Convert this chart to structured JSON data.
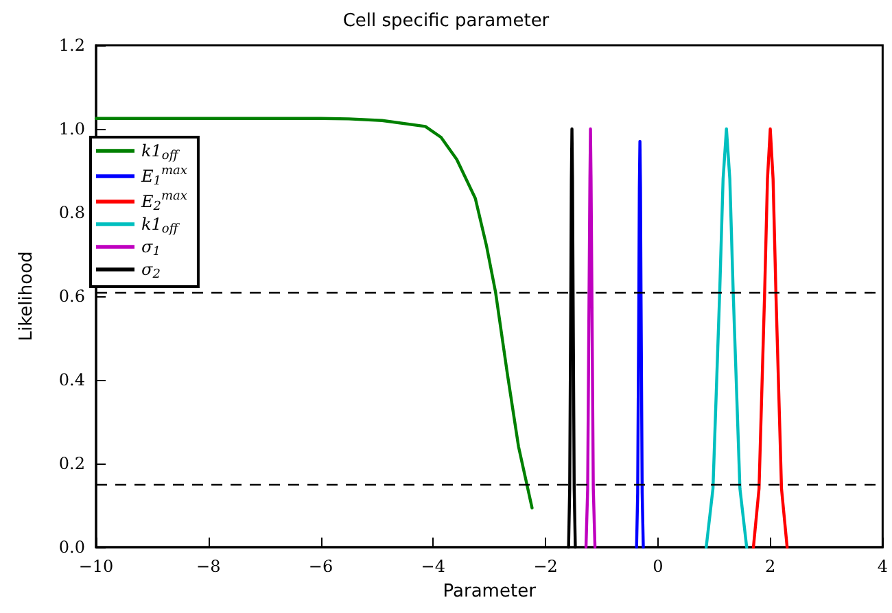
{
  "chart_data": {
    "type": "line",
    "title": "Cell specific parameter",
    "xlabel": "Parameter",
    "ylabel": "Likelihood",
    "xlim": [
      -10,
      4
    ],
    "xticks": [
      {
        "value": -10,
        "label": "−10"
      },
      {
        "value": -8,
        "label": "−8"
      },
      {
        "value": -6,
        "label": "−6"
      },
      {
        "value": -4,
        "label": "−4"
      },
      {
        "value": -2,
        "label": "−2"
      },
      0,
      2,
      4
    ],
    "ylim": [
      0,
      1.2
    ],
    "yticks": [
      {
        "value": 0,
        "label": "0.0"
      },
      {
        "value": 0.2,
        "label": "0.2"
      },
      {
        "value": 0.4,
        "label": "0.4"
      },
      {
        "value": 0.6,
        "label": "0.6"
      },
      {
        "value": 0.8,
        "label": "0.8"
      },
      {
        "value": 1.0,
        "label": "1.0"
      },
      {
        "value": 1.2,
        "label": "1.2"
      }
    ],
    "grid": false,
    "legend": "top left",
    "marker": "none",
    "line_style": "solid",
    "ref_lines": [
      {
        "axis": "y",
        "value": 0.61,
        "color": "#000000",
        "line_style": "dashed"
      },
      {
        "axis": "y",
        "value": 0.15,
        "color": "#000000",
        "line_style": "dashed"
      }
    ],
    "series": [
      {
        "name": "k1$_{off}$",
        "color": "#008000",
        "x": [
          -10,
          -8,
          -6,
          -5.5,
          -4.91,
          -4.14,
          -3.86,
          -3.58,
          -3.25,
          -3.05,
          -2.89,
          -2.68,
          -2.48,
          -2.24
        ],
        "values": [
          1.025,
          1.025,
          1.025,
          1.024,
          1.02,
          1.006,
          0.98,
          0.927,
          0.834,
          0.72,
          0.61,
          0.415,
          0.24,
          0.094
        ]
      },
      {
        "name": "E$_{1}$$^{max}$",
        "color": "#0000ff",
        "x": [
          -0.38,
          -0.36,
          -0.34,
          -0.33,
          -0.32,
          -0.31,
          -0.3,
          -0.28,
          -0.26
        ],
        "values": [
          0,
          0.13,
          0.59,
          0.86,
          0.97,
          0.86,
          0.59,
          0.13,
          0
        ]
      },
      {
        "name": "E$_{2}$$^{max}$",
        "color": "#ff0000",
        "x": [
          1.7,
          1.8,
          1.9,
          1.95,
          2.0,
          2.05,
          2.1,
          2.2,
          2.3
        ],
        "values": [
          0,
          0.14,
          0.61,
          0.88,
          1.0,
          0.88,
          0.61,
          0.14,
          0
        ]
      },
      {
        "name": "k1$_{off}$",
        "color": "#00bfbf",
        "x": [
          0.86,
          0.98,
          1.1,
          1.16,
          1.22,
          1.28,
          1.34,
          1.46,
          1.58
        ],
        "values": [
          0,
          0.14,
          0.61,
          0.88,
          1.0,
          0.88,
          0.61,
          0.14,
          0
        ]
      },
      {
        "name": "σ$_{1}$",
        "color": "#bf00bf",
        "x": [
          -1.28,
          -1.25,
          -1.225,
          -1.21,
          -1.2,
          -1.19,
          -1.175,
          -1.15,
          -1.12
        ],
        "values": [
          0,
          0.14,
          0.61,
          0.88,
          1.0,
          0.88,
          0.61,
          0.14,
          0
        ]
      },
      {
        "name": "σ$_{2}$",
        "color": "#000000",
        "x": [
          -1.59,
          -1.57,
          -1.55,
          -1.54,
          -1.53,
          -1.52,
          -1.51,
          -1.49,
          -1.47
        ],
        "values": [
          0,
          0.14,
          0.61,
          0.88,
          1.0,
          0.88,
          0.61,
          0.14,
          0
        ]
      }
    ]
  }
}
